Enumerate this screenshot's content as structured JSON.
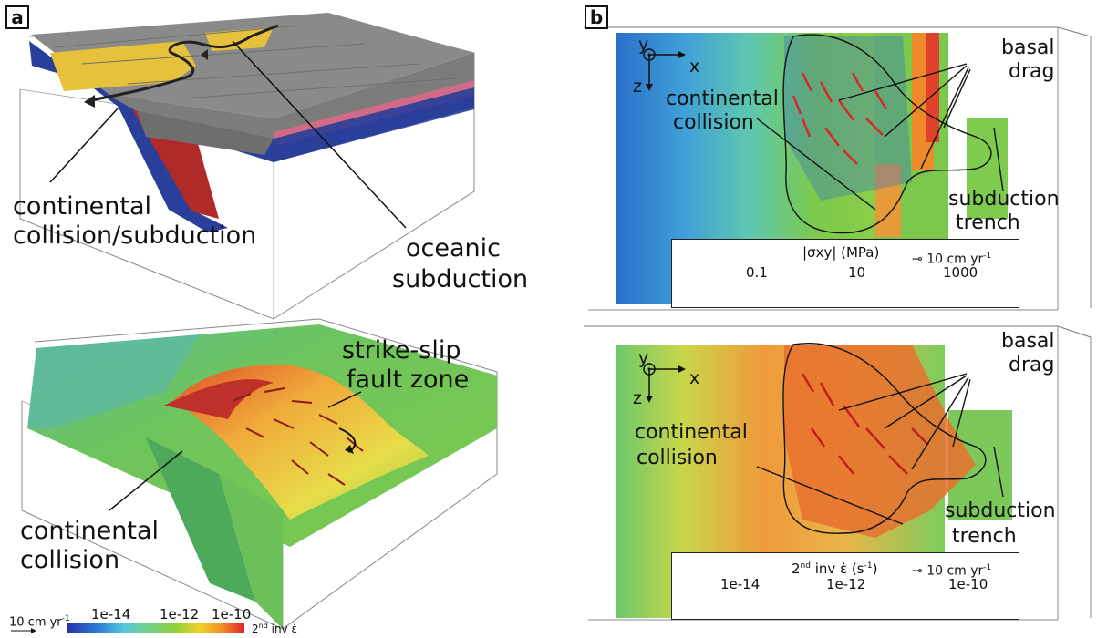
{
  "panels": {
    "a": {
      "label": "a",
      "top_labels": {
        "collision": "continental collision/subduction",
        "collision_line1": "continental",
        "collision_line2": "collision/subduction",
        "oceanic_line1": "oceanic",
        "oceanic_line2": "subduction"
      },
      "bottom_labels": {
        "strike_slip_line1": "strike-slip",
        "strike_slip_line2": "fault zone",
        "collision_line1": "continental",
        "collision_line2": "collision"
      },
      "colorbar": {
        "velocity_label": "10 cm yr",
        "velocity_exp": "-1",
        "ticks": [
          "1e-14",
          "1e-12",
          "1e-10"
        ],
        "quantity": "2",
        "quantity_sup": "nd",
        "quantity_rest": " inv ε̇"
      }
    },
    "b": {
      "label": "b",
      "top": {
        "basal": "basal",
        "drag": "drag",
        "continental": "continental",
        "collision": "collision",
        "subduction": "subduction",
        "trench": "trench",
        "axis_y": "y",
        "axis_x": "x",
        "axis_z": "z",
        "colorbar": {
          "quantity": "|σxy| (MPa)",
          "velocity": "10 cm yr",
          "velocity_exp": "-1",
          "ticks": [
            "0.1",
            "10",
            "1000"
          ],
          "colors": [
            "#2b4fb8",
            "#3a7fd6",
            "#58c3e8",
            "#6fcfb6",
            "#6cc84e",
            "#9ad23c",
            "#c8d93a",
            "#f2d12a",
            "#f08a28",
            "#e0312a"
          ]
        }
      },
      "bottom": {
        "basal": "basal",
        "drag": "drag",
        "continental": "continental",
        "collision": "collision",
        "subduction": "subduction",
        "trench": "trench",
        "axis_y": "y",
        "axis_x": "x",
        "axis_z": "z",
        "colorbar": {
          "quantity_pre": "2",
          "quantity_sup": "nd",
          "quantity_rest": " inv ε̇ (s",
          "quantity_unit_exp": "-1",
          "quantity_close": ")",
          "velocity": "10 cm yr",
          "velocity_exp": "-1",
          "ticks": [
            "1e-14",
            "1e-12",
            "1e-10"
          ]
        }
      }
    }
  }
}
